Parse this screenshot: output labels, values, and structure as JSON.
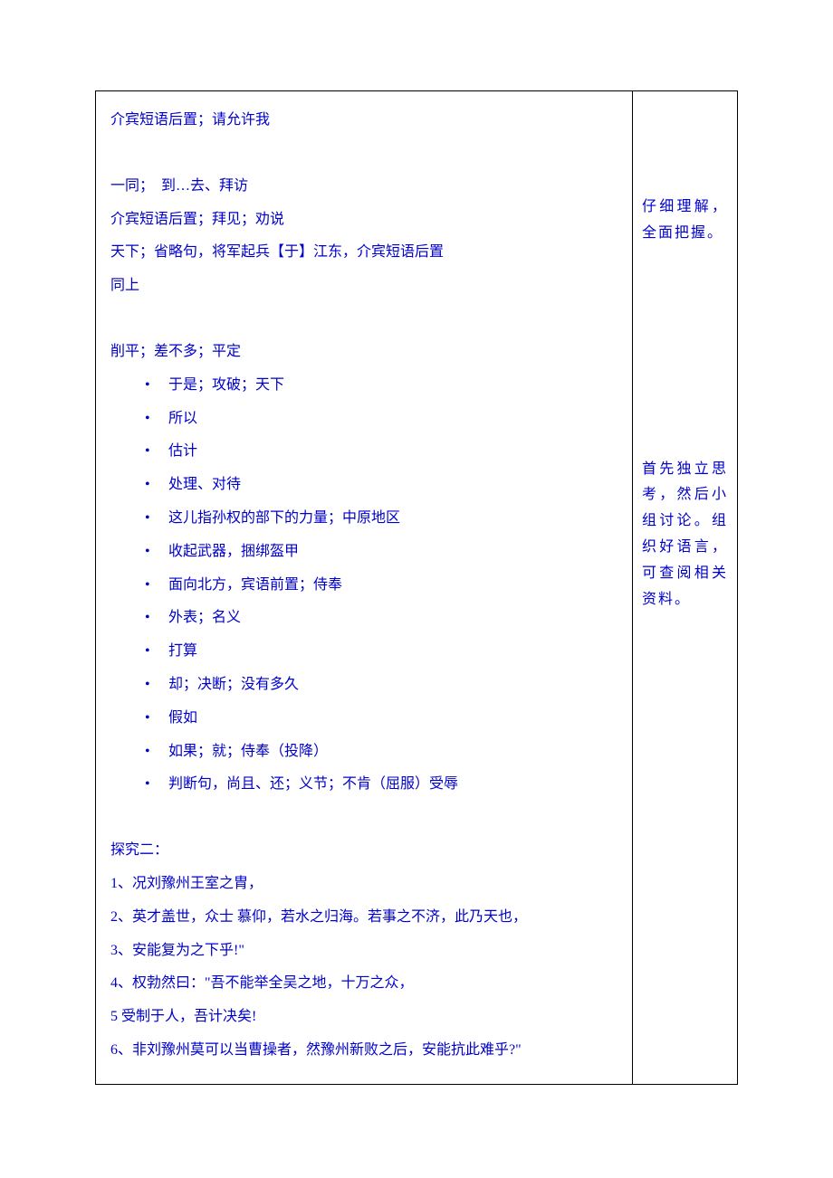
{
  "main": {
    "section1": {
      "l1": "介宾短语后置；请允许我",
      "l2": "一同；　到…去、拜访",
      "l3": "介宾短语后置；拜见；劝说",
      "l4": "天下；省略句，将军起兵【于】江东，介宾短语后置",
      "l5": "同上"
    },
    "section2": {
      "intro": "削平；差不多；平定",
      "bullets": [
        "于是；攻破；天下",
        "所以",
        "估计",
        "处理、对待",
        "这儿指孙权的部下的力量；中原地区",
        "收起武器，捆绑盔甲",
        "面向北方，宾语前置；侍奉",
        "外表；名义",
        "打算",
        "却；决断；没有多久",
        "假如",
        "如果；就；侍奉（投降）",
        "判断句，尚且、还；义节；不肯（屈服）受辱"
      ]
    },
    "section3": {
      "heading": "探究二：",
      "items": [
        "1、况刘豫州王室之胄，",
        "2、英才盖世，众士 慕仰，若水之归海。若事之不济，此乃天也，",
        "3、安能复为之下乎!\"",
        "4、权勃然曰：\"吾不能举全吴之地，十万之众，",
        "5  受制于人，吾计决矣!",
        "6、非刘豫州莫可以当曹操者，然豫州新败之后，安能抗此难乎?\""
      ]
    }
  },
  "side": {
    "note1": "仔细理解，全面把握。",
    "note2": "首先独立思考，然后小组讨论。组织好语言，可查阅相关资料。"
  },
  "colors": {
    "text": "#0000cc",
    "border": "#000000",
    "background": "#ffffff"
  }
}
